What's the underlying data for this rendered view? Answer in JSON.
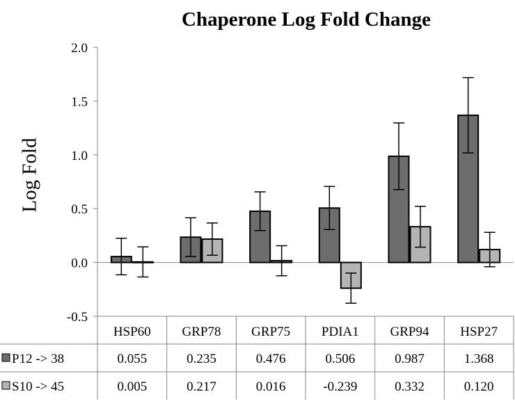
{
  "chart_data": {
    "type": "bar",
    "title": "Chaperone Log Fold Change",
    "ylabel": "Log Fold",
    "xlabel": "",
    "ylim": [
      -0.5,
      2.0
    ],
    "yticks": [
      "2.0",
      "1.5",
      "1.0",
      "0.5",
      "0.0",
      "-0.5"
    ],
    "ytick_values": [
      2.0,
      1.5,
      1.0,
      0.5,
      0.0,
      -0.5
    ],
    "categories": [
      "HSP60",
      "GRP78",
      "GRP75",
      "PDIA1",
      "GRP94",
      "HSP27"
    ],
    "grid": false,
    "legend": "data-table",
    "series": [
      {
        "name": "P12 -> 38",
        "color": "#6d6d6d",
        "values": [
          0.055,
          0.235,
          0.476,
          0.506,
          0.987,
          1.368
        ],
        "labels": [
          "0.055",
          "0.235",
          "0.476",
          "0.506",
          "0.987",
          "1.368"
        ],
        "error": [
          0.17,
          0.18,
          0.18,
          0.2,
          0.31,
          0.35
        ]
      },
      {
        "name": "S10 -> 45",
        "color": "#b4b4b4",
        "values": [
          0.005,
          0.217,
          0.016,
          -0.239,
          0.332,
          0.12
        ],
        "labels": [
          "0.005",
          "0.217",
          "0.016",
          "-0.239",
          "0.332",
          "0.120"
        ],
        "error": [
          0.14,
          0.15,
          0.14,
          0.14,
          0.19,
          0.16
        ]
      }
    ]
  }
}
